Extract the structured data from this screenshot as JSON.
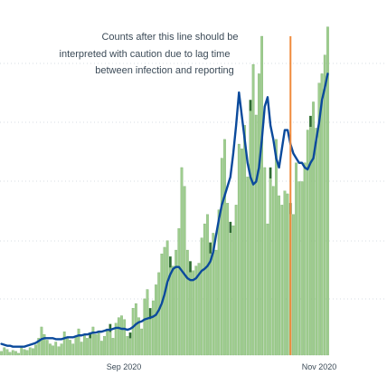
{
  "chart_data": {
    "type": "bar",
    "title": "",
    "xlabel": "",
    "ylabel": "",
    "x_axis": {
      "tick_labels": [
        "Sep 2020",
        "Nov 2020"
      ]
    },
    "y_axis": {
      "ylim": [
        0,
        340
      ],
      "grid": true,
      "tick_labels_visible": false
    },
    "annotation": {
      "lines": [
        "Counts after this line should be",
        "interpreted with caution due to lag time",
        "between infection and reporting"
      ]
    },
    "marker_line_color": "#f08a3c",
    "colors": {
      "bars": "#9fcd8f",
      "bars_edge": "#6fa862",
      "dark_caps": "#2f6b34",
      "average_line": "#0b4a9c",
      "grid": "#d7dde3"
    },
    "series": [
      {
        "kind": "bar",
        "values": [
          4,
          8,
          6,
          3,
          5,
          4,
          2,
          9,
          6,
          5,
          8,
          7,
          11,
          18,
          30,
          22,
          16,
          12,
          10,
          14,
          9,
          12,
          25,
          18,
          16,
          12,
          20,
          28,
          14,
          22,
          18,
          24,
          30,
          22,
          26,
          15,
          20,
          28,
          33,
          18,
          34,
          40,
          42,
          38,
          20,
          24,
          50,
          55,
          40,
          28,
          60,
          70,
          50,
          58,
          75,
          88,
          108,
          115,
          122,
          105,
          95,
          112,
          135,
          200,
          180,
          112,
          100,
          90,
          95,
          98,
          125,
          140,
          150,
          120,
          130,
          112,
          155,
          210,
          230,
          162,
          142,
          138,
          160,
          225,
          220,
          245,
          190,
          272,
          310,
          256,
          300,
          340,
          200,
          140,
          200,
          180,
          230,
          170,
          160,
          175,
          172,
          162,
          150,
          205,
          185,
          185,
          205,
          240,
          255,
          270,
          242,
          290,
          300,
          320,
          350
        ]
      },
      {
        "kind": "line",
        "values": [
          12,
          11,
          10,
          10,
          9,
          9,
          9,
          9,
          9,
          10,
          11,
          12,
          13,
          15,
          17,
          18,
          18,
          18,
          18,
          17,
          17,
          17,
          18,
          19,
          19,
          19,
          20,
          21,
          21,
          22,
          22,
          23,
          24,
          24,
          25,
          25,
          26,
          27,
          27,
          28,
          29,
          29,
          28,
          28,
          27,
          28,
          30,
          33,
          35,
          36,
          38,
          39,
          40,
          41,
          43,
          48,
          55,
          65,
          78,
          86,
          92,
          94,
          94,
          90,
          86,
          82,
          80,
          80,
          82,
          86,
          90,
          92,
          95,
          100,
          110,
          128,
          145,
          160,
          170,
          180,
          190,
          215,
          245,
          280,
          255,
          230,
          205,
          190,
          182,
          185,
          200,
          230,
          265,
          275,
          245,
          230,
          210,
          200,
          220,
          240,
          240,
          225,
          215,
          210,
          205,
          205,
          200,
          198,
          205,
          210,
          230,
          248,
          272,
          285,
          300
        ]
      }
    ]
  }
}
